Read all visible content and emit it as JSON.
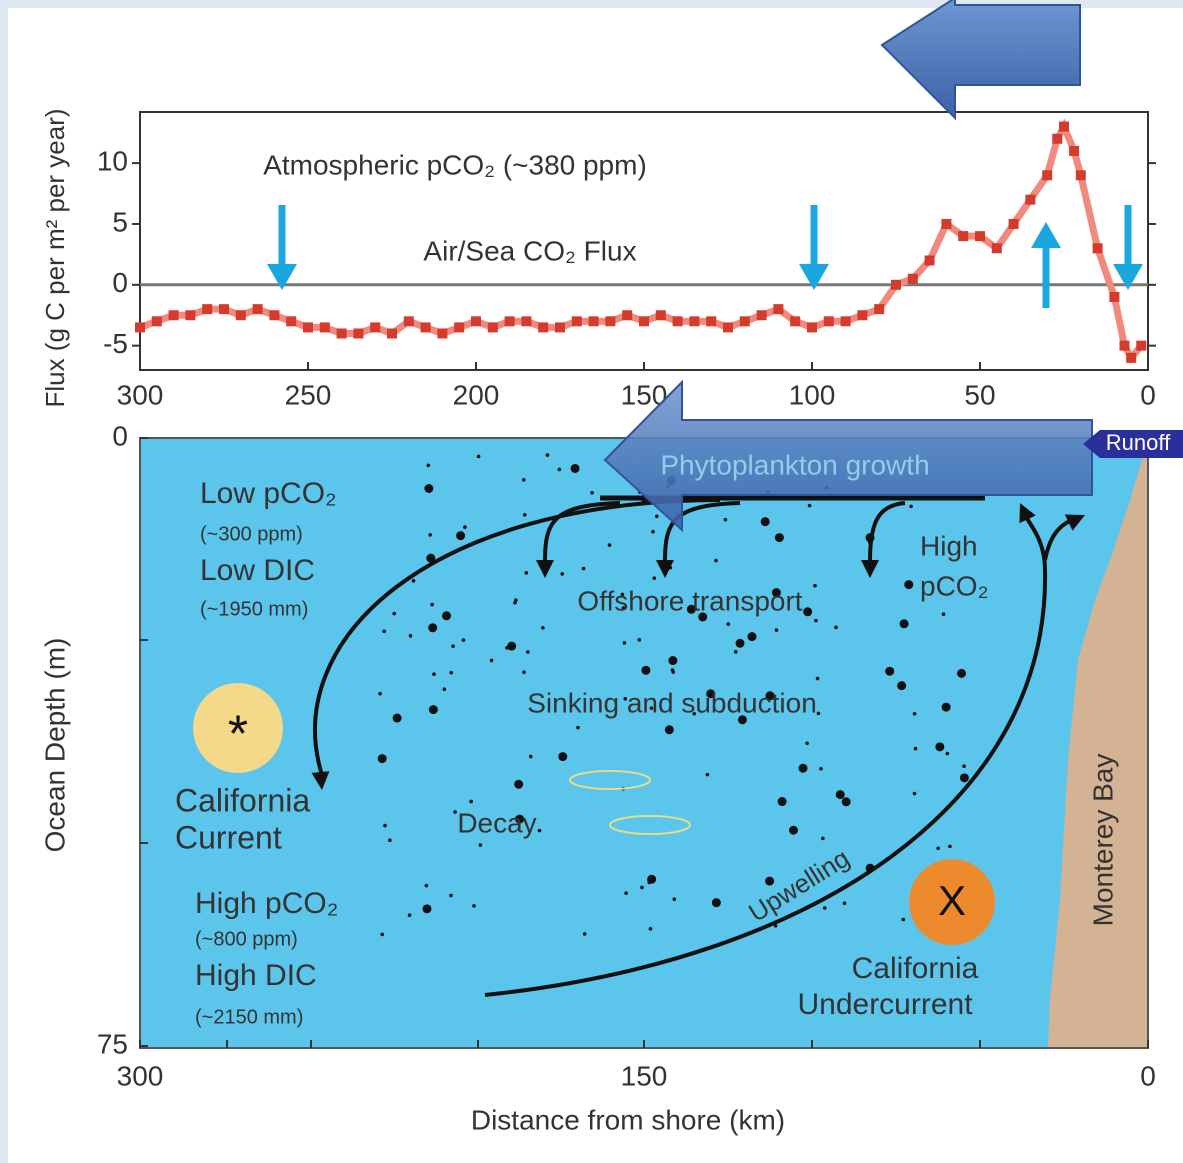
{
  "chart_data": [
    {
      "type": "line",
      "y_label": "Flux (g C per m² per year)",
      "annotations": [
        "Atmospheric pCO₂ (~380 ppm)",
        "Air/Sea CO₂ Flux"
      ],
      "x": [
        300,
        295,
        290,
        285,
        280,
        275,
        270,
        265,
        260,
        255,
        250,
        245,
        240,
        235,
        230,
        225,
        220,
        215,
        210,
        205,
        200,
        195,
        190,
        185,
        180,
        175,
        170,
        165,
        160,
        155,
        150,
        145,
        140,
        135,
        130,
        125,
        120,
        115,
        110,
        105,
        100,
        95,
        90,
        85,
        80,
        75,
        70,
        65,
        60,
        55,
        50,
        45,
        40,
        35,
        30,
        27,
        25,
        22,
        20,
        15,
        10,
        7,
        5,
        2
      ],
      "series": [
        {
          "color": "#d33b2c",
          "values": [
            -3.5,
            -3,
            -2.5,
            -2.5,
            -2,
            -2,
            -2.5,
            -2,
            -2.5,
            -3,
            -3.5,
            -3.5,
            -4,
            -4,
            -3.5,
            -4,
            -3,
            -3.5,
            -4,
            -3.5,
            -3,
            -3.5,
            -3,
            -3,
            -3.5,
            -3.5,
            -3,
            -3,
            -3,
            -2.5,
            -3,
            -2.5,
            -3,
            -3,
            -3,
            -3.5,
            -3,
            -2.5,
            -2,
            -3,
            -3.5,
            -3,
            -3,
            -2.5,
            -2,
            0,
            0.5,
            2,
            5,
            4,
            4,
            3,
            5,
            7,
            9,
            12,
            13,
            11,
            9,
            3,
            -1,
            -5,
            -6,
            -5
          ]
        }
      ],
      "xlim": [
        300,
        0
      ],
      "xticks": [
        300,
        250,
        200,
        150,
        100,
        50,
        0
      ],
      "ylim": [
        -7,
        14.2
      ],
      "yticks": [
        -5,
        0,
        5,
        10
      ]
    },
    {
      "type": "diagram",
      "x_label": "Distance from shore (km)",
      "y_label": "Ocean Depth (m)",
      "xlim": [
        300,
        0
      ],
      "xticks": [
        300,
        150,
        0
      ],
      "ylim": [
        0,
        75
      ],
      "yticks": [
        0,
        75
      ],
      "labels": [
        "Runoff",
        "Phytoplankton growth",
        "Low pCO₂",
        "(~300 ppm)",
        "Low DIC",
        "(~1950 mm)",
        "High",
        "pCO₂",
        "Offshore transport",
        "Sinking and subduction",
        "California",
        "Current",
        "Decay",
        "High pCO₂",
        "(~800 ppm)",
        "High DIC",
        "(~2150 mm)",
        "Upwelling",
        "California",
        "Undercurrent",
        "Monterey Bay",
        "*",
        "X"
      ]
    }
  ]
}
